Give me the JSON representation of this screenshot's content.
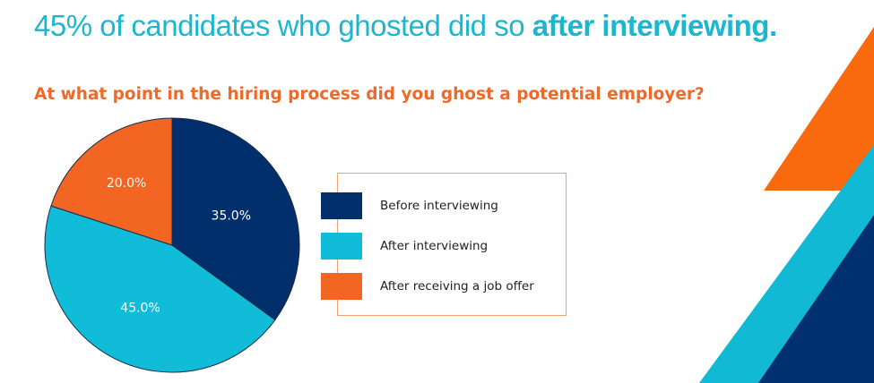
{
  "headline": {
    "prefix": "45% of candidates who ghosted did so ",
    "emphasis": "after interviewing."
  },
  "chart_data": {
    "type": "pie",
    "title": "At what point in the hiring process did you ghost a potential employer?",
    "categories": [
      "Before interviewing",
      "After interviewing",
      "After receiving a job offer"
    ],
    "values": [
      35.0,
      45.0,
      20.0
    ],
    "value_labels": [
      "35.0%",
      "45.0%",
      "20.0%"
    ],
    "colors": [
      "#002f6c",
      "#10bcd7",
      "#f26522"
    ],
    "start": "12 o'clock, clockwise",
    "legend_position": "right"
  },
  "colors": {
    "headline": "#1cb6cf",
    "question": "#ee6a2b",
    "legend_border": "#f3a173",
    "deco_orange": "#f86a0d",
    "deco_cyan": "#12b9d5",
    "deco_navy": "#00306f"
  }
}
